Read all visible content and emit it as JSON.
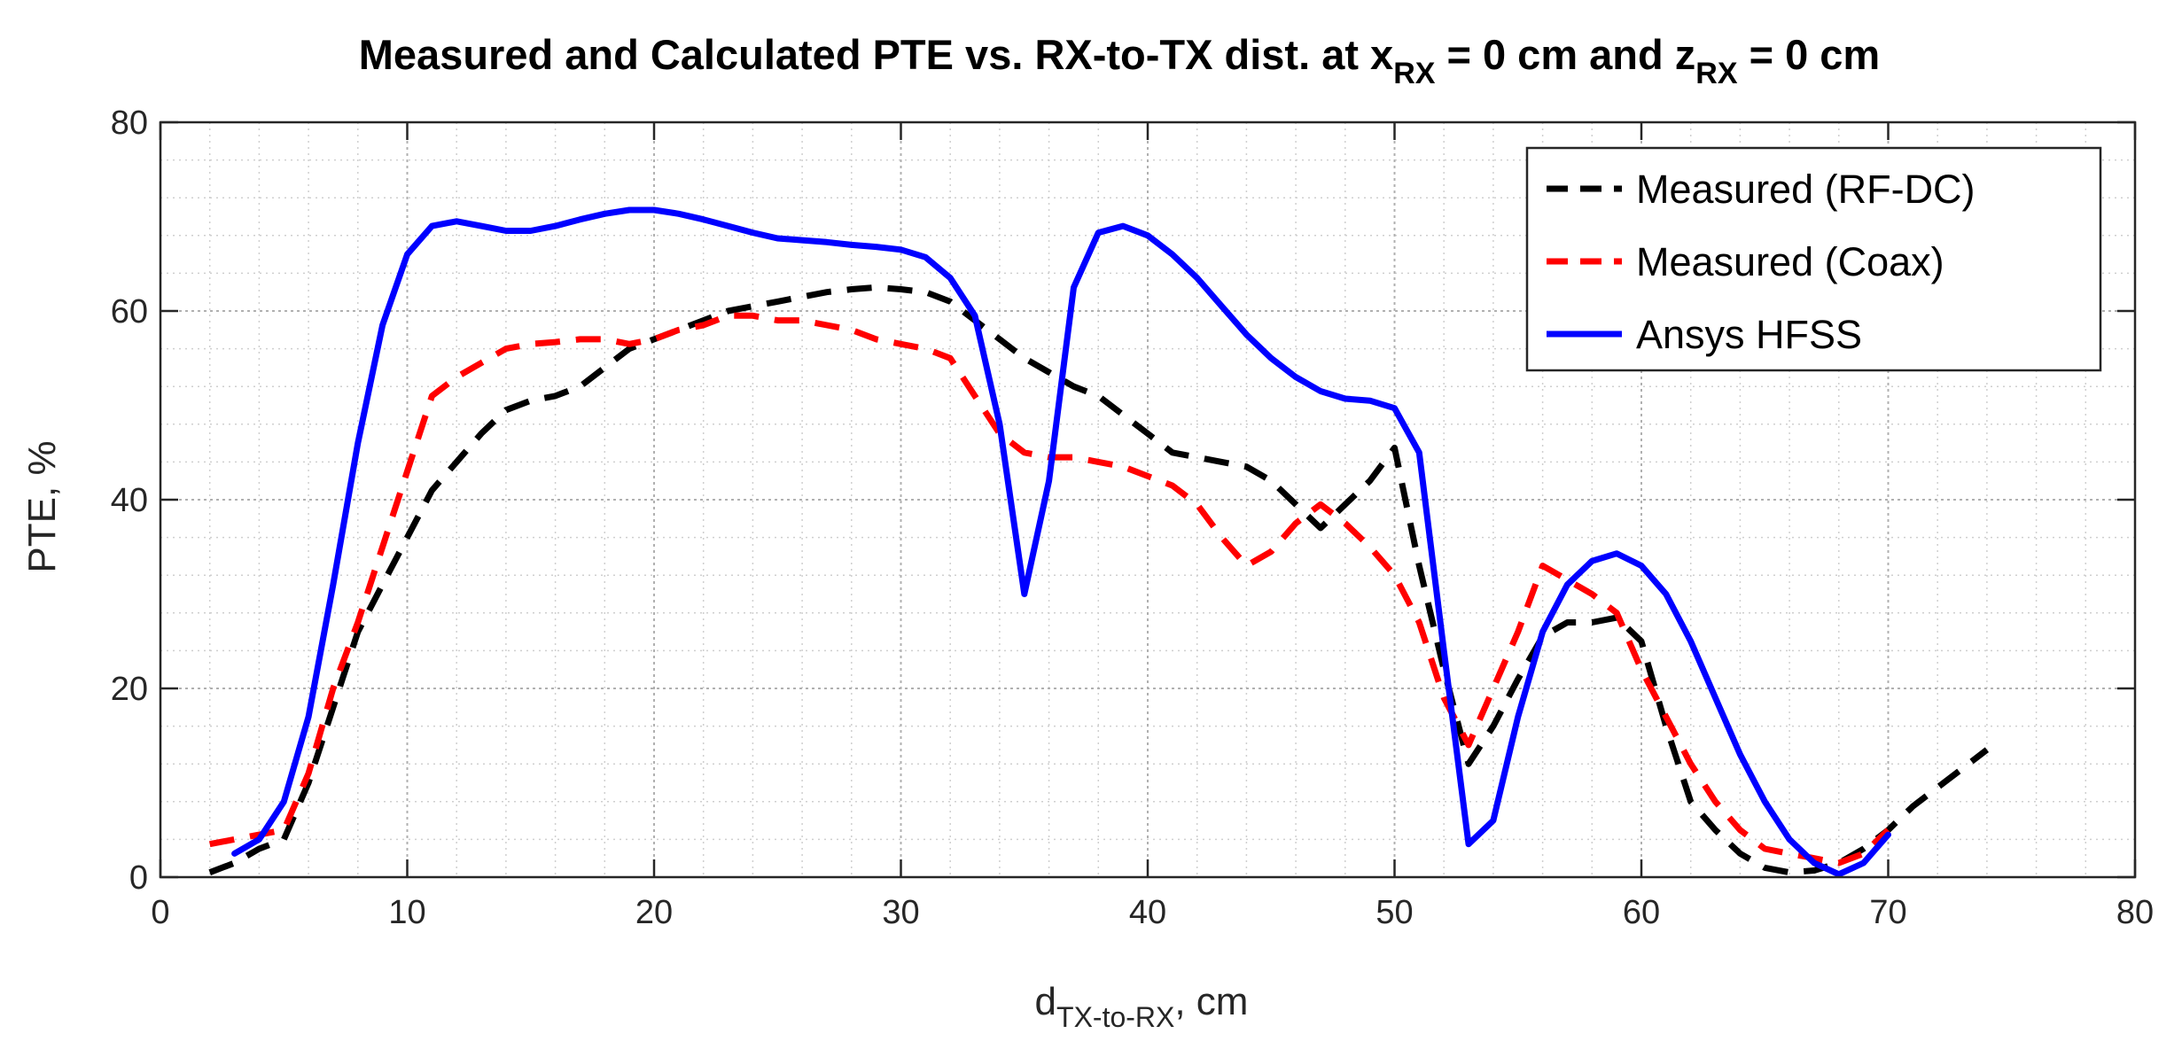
{
  "chart_data": {
    "type": "line",
    "title": {
      "prefix": "Measured and Calculated PTE vs. RX-to-TX dist. at x",
      "sub1": "RX",
      "middle": " = 0 cm and z",
      "sub2": "RX",
      "suffix": " = 0 cm"
    },
    "xlabel": {
      "main": "d",
      "sub": "TX-to-RX",
      "suffix": ", cm"
    },
    "ylabel": "PTE, %",
    "xlim": [
      0,
      80
    ],
    "ylim": [
      0,
      80
    ],
    "xticks": [
      0,
      10,
      20,
      30,
      40,
      50,
      60,
      70,
      80
    ],
    "yticks": [
      0,
      20,
      40,
      60,
      80
    ],
    "grid": true,
    "minor_grid": true,
    "legend_position": "top-right",
    "series": [
      {
        "name": "Measured (RF-DC)",
        "color": "#000000",
        "style": "dashed",
        "x": [
          2,
          3,
          4,
          5,
          6,
          7,
          8,
          9,
          10,
          11,
          12,
          13,
          14,
          15,
          16,
          17,
          18,
          19,
          20,
          21,
          22,
          23,
          24,
          25,
          26,
          27,
          28,
          29,
          30,
          31,
          32,
          33,
          34,
          35,
          36,
          37,
          38,
          39,
          40,
          41,
          42,
          43,
          44,
          45,
          46,
          47,
          48,
          49,
          50,
          51,
          52,
          53,
          54,
          55,
          56,
          57,
          58,
          59,
          60,
          61,
          62,
          63,
          64,
          65,
          66,
          67,
          68,
          69,
          70,
          71,
          72,
          73,
          74
        ],
        "values": [
          0.5,
          1.5,
          3,
          4,
          10,
          18,
          26,
          31,
          36,
          41,
          44,
          47,
          49.5,
          50.5,
          51,
          52,
          54,
          56,
          57,
          58,
          59,
          60,
          60.5,
          61,
          61.5,
          62,
          62.3,
          62.5,
          62.3,
          62,
          61,
          59,
          57,
          55,
          53.5,
          52,
          51,
          49,
          47,
          45,
          44.5,
          44,
          43.5,
          42,
          39.5,
          37,
          39.5,
          42,
          45.5,
          33,
          22,
          12,
          16,
          21,
          25.5,
          27,
          27,
          27.5,
          25,
          16,
          8,
          5,
          2.5,
          1,
          0.5,
          0.7,
          1.5,
          3,
          5,
          7.5,
          9.5,
          11.5,
          13.5
        ]
      },
      {
        "name": "Measured (Coax)",
        "color": "#ff0000",
        "style": "dashed",
        "x": [
          2,
          3,
          4,
          5,
          6,
          7,
          8,
          9,
          10,
          11,
          12,
          13,
          14,
          15,
          16,
          17,
          18,
          19,
          20,
          21,
          22,
          23,
          24,
          25,
          26,
          27,
          28,
          29,
          30,
          31,
          32,
          33,
          34,
          35,
          36,
          37,
          38,
          39,
          40,
          41,
          42,
          43,
          44,
          45,
          46,
          47,
          48,
          49,
          50,
          51,
          52,
          53,
          54,
          55,
          56,
          57,
          58,
          59,
          60,
          61,
          62,
          63,
          64,
          65,
          66,
          67,
          68,
          69,
          70
        ],
        "values": [
          3.5,
          4,
          4.5,
          5,
          11,
          20,
          27,
          35,
          43,
          51,
          53,
          54.5,
          56,
          56.5,
          56.7,
          57,
          57,
          56.5,
          57,
          58,
          58.5,
          59.5,
          59.5,
          59,
          59,
          58.5,
          58,
          57,
          56.5,
          56,
          55,
          51,
          47,
          45,
          44.5,
          44.5,
          44,
          43.5,
          42.5,
          41.5,
          39.5,
          36,
          33,
          34.5,
          37.5,
          39.5,
          37.5,
          35,
          32,
          27,
          19,
          14,
          20,
          26,
          33,
          31.5,
          30,
          28,
          22,
          17,
          12,
          8,
          5,
          3,
          2.5,
          2,
          1.5,
          2.5,
          5
        ]
      },
      {
        "name": "Ansys HFSS",
        "color": "#0000ff",
        "style": "solid",
        "x": [
          3,
          4,
          5,
          6,
          7,
          8,
          9,
          10,
          11,
          12,
          13,
          14,
          15,
          16,
          17,
          18,
          19,
          20,
          21,
          22,
          23,
          24,
          25,
          26,
          27,
          28,
          29,
          30,
          31,
          32,
          33,
          34,
          35,
          36,
          37,
          38,
          39,
          40,
          41,
          42,
          43,
          44,
          45,
          46,
          47,
          48,
          49,
          50,
          51,
          52,
          53,
          54,
          55,
          56,
          57,
          58,
          59,
          60,
          61,
          62,
          63,
          64,
          65,
          66,
          67,
          68,
          69,
          70
        ],
        "values": [
          2.5,
          4,
          8,
          17,
          31,
          46,
          58.5,
          66,
          69,
          69.5,
          69,
          68.5,
          68.5,
          69,
          69.7,
          70.3,
          70.7,
          70.7,
          70.3,
          69.7,
          69,
          68.3,
          67.7,
          67.5,
          67.3,
          67,
          66.8,
          66.5,
          65.7,
          63.5,
          59.5,
          48,
          30,
          42,
          62.5,
          68.3,
          69,
          68,
          66,
          63.5,
          60.5,
          57.5,
          55,
          53,
          51.5,
          50.7,
          50.5,
          49.7,
          45,
          24,
          3.5,
          6,
          17,
          26,
          31,
          33.5,
          34.3,
          33,
          30,
          25,
          19,
          13,
          8,
          4,
          1.5,
          0.3,
          1.5,
          4.5
        ]
      }
    ]
  }
}
